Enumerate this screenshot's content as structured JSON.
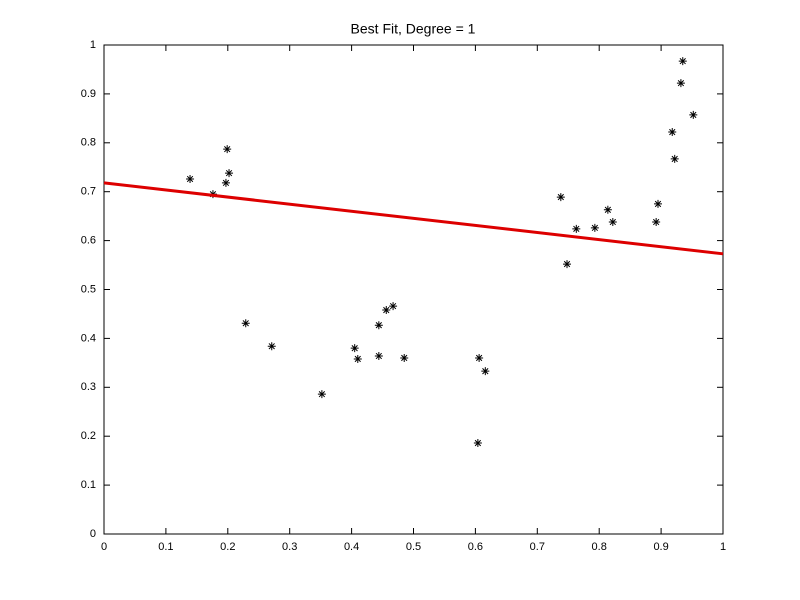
{
  "chart_data": {
    "type": "scatter",
    "title": "Best Fit, Degree = 1",
    "xlim": [
      0,
      1
    ],
    "ylim": [
      0,
      1
    ],
    "xticks": [
      0,
      0.1,
      0.2,
      0.3,
      0.4,
      0.5,
      0.6,
      0.7,
      0.8,
      0.9,
      1
    ],
    "yticks": [
      0,
      0.1,
      0.2,
      0.3,
      0.4,
      0.5,
      0.6,
      0.7,
      0.8,
      0.9,
      1
    ],
    "series": [
      {
        "type": "scatter",
        "color": "#000000",
        "x": [
          0.139,
          0.176,
          0.199,
          0.197,
          0.202,
          0.229,
          0.271,
          0.352,
          0.405,
          0.41,
          0.444,
          0.444,
          0.456,
          0.467,
          0.485,
          0.606,
          0.616,
          0.604,
          0.738,
          0.748,
          0.763,
          0.793,
          0.814,
          0.822,
          0.892,
          0.895,
          0.918,
          0.922,
          0.932,
          0.935,
          0.952
        ],
        "values": [
          0.726,
          0.695,
          0.787,
          0.718,
          0.738,
          0.431,
          0.384,
          0.286,
          0.38,
          0.358,
          0.427,
          0.364,
          0.458,
          0.466,
          0.36,
          0.36,
          0.333,
          0.186,
          0.689,
          0.552,
          0.624,
          0.626,
          0.663,
          0.638,
          0.638,
          0.675,
          0.822,
          0.767,
          0.922,
          0.967,
          0.857
        ]
      },
      {
        "type": "line",
        "color": "#dd0000",
        "x": [
          0,
          1
        ],
        "values": [
          0.718,
          0.573
        ]
      }
    ]
  }
}
